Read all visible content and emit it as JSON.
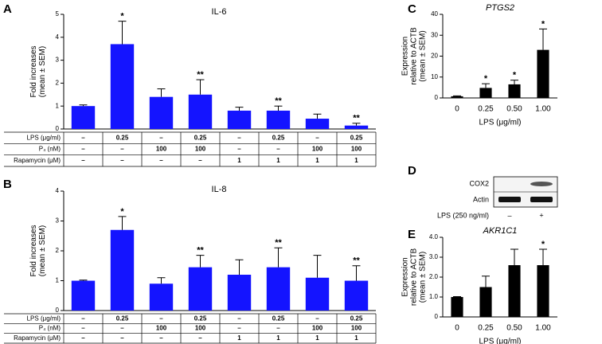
{
  "panel_labels": [
    "A",
    "B",
    "C",
    "D",
    "E"
  ],
  "chart_data": [
    {
      "type": "bar",
      "title": "IL-6",
      "ylabel": [
        "Fold increases",
        "(mean ± SEM)"
      ],
      "color": "#1414ff",
      "values": [
        1.0,
        3.7,
        1.4,
        1.5,
        0.8,
        0.8,
        0.45,
        0.15
      ],
      "errors": [
        0.05,
        1.0,
        0.35,
        0.65,
        0.15,
        0.2,
        0.2,
        0.1
      ],
      "stars": [
        null,
        "*",
        null,
        "**",
        null,
        "**",
        null,
        "**"
      ],
      "ylim": [
        0,
        5
      ],
      "yticks": [
        0,
        1,
        2,
        3,
        4,
        5
      ],
      "condition_table": {
        "row_labels": [
          "LPS (μg/ml)",
          "P₄ (nM)",
          "Rapamycin (μM)"
        ],
        "rows": [
          [
            "–",
            "0.25",
            "–",
            "0.25",
            "–",
            "0.25",
            "–",
            "0.25"
          ],
          [
            "–",
            "–",
            "100",
            "100",
            "–",
            "–",
            "100",
            "100"
          ],
          [
            "–",
            "–",
            "–",
            "–",
            "1",
            "1",
            "1",
            "1"
          ]
        ]
      }
    },
    {
      "type": "bar",
      "title": "IL-8",
      "ylabel": [
        "Fold increases",
        "(mean ± SEM)"
      ],
      "color": "#1414ff",
      "values": [
        1.0,
        2.7,
        0.9,
        1.45,
        1.2,
        1.45,
        1.1,
        1.0
      ],
      "errors": [
        0.02,
        0.45,
        0.2,
        0.4,
        0.5,
        0.65,
        0.75,
        0.5
      ],
      "stars": [
        null,
        "*",
        null,
        "**",
        null,
        "**",
        null,
        "**"
      ],
      "ylim": [
        0,
        4
      ],
      "yticks": [
        0,
        1,
        2,
        3,
        4
      ],
      "condition_table": {
        "row_labels": [
          "LPS (μg/ml)",
          "P₄ (nM)",
          "Rapamycin (μM)"
        ],
        "rows": [
          [
            "–",
            "0.25",
            "–",
            "0.25",
            "–",
            "0.25",
            "–",
            "0.25"
          ],
          [
            "–",
            "–",
            "100",
            "100",
            "–",
            "–",
            "100",
            "100"
          ],
          [
            "–",
            "–",
            "–",
            "–",
            "1",
            "1",
            "1",
            "1"
          ]
        ]
      }
    },
    {
      "type": "bar",
      "title": "PTGS2",
      "ylabel": [
        "Expression",
        "relative to ACTB",
        "(mean ± SEM)"
      ],
      "xlabel": "LPS (μg/ml)",
      "color": "#000000",
      "categories": [
        "0",
        "0.25",
        "0.50",
        "1.00"
      ],
      "values": [
        0.8,
        4.8,
        6.5,
        23
      ],
      "errors": [
        0.2,
        2,
        2,
        10
      ],
      "stars": [
        null,
        "*",
        "*",
        "*"
      ],
      "ylim": [
        0,
        40
      ],
      "yticks": [
        0,
        10,
        20,
        30,
        40
      ]
    },
    {
      "type": "bar",
      "title": "AKR1C1",
      "ylabel": [
        "Expression",
        "relative to ACTB",
        "(mean ± SEM)"
      ],
      "xlabel": "LPS (μg/ml)",
      "color": "#000000",
      "categories": [
        "0",
        "0.25",
        "0.50",
        "1.00"
      ],
      "values": [
        1.0,
        1.5,
        2.6,
        2.6
      ],
      "errors": [
        0.02,
        0.55,
        0.8,
        0.8
      ],
      "stars": [
        null,
        null,
        null,
        "*"
      ],
      "ylim": [
        0,
        4
      ],
      "yticks": [
        0,
        {
          "value": 1,
          "label": "1.0"
        },
        {
          "value": 2,
          "label": "2.0"
        },
        {
          "value": 3,
          "label": "3.0"
        },
        {
          "value": 4,
          "label": "4.0"
        }
      ]
    }
  ],
  "blot": {
    "bands": [
      "COX2",
      "Actin"
    ],
    "treatment_label": "LPS (250 ng/ml)",
    "lanes": [
      "–",
      "+"
    ]
  }
}
